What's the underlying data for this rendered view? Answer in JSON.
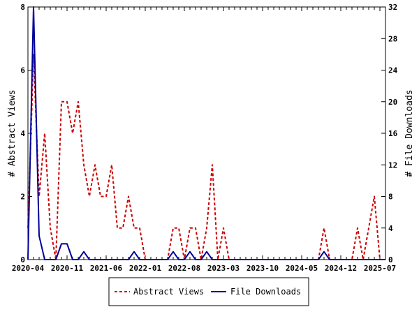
{
  "chart_data": {
    "type": "line",
    "x": [
      "2020-04",
      "2020-05",
      "2020-06",
      "2020-07",
      "2020-08",
      "2020-09",
      "2020-10",
      "2020-11",
      "2020-12",
      "2021-01",
      "2021-02",
      "2021-03",
      "2021-04",
      "2021-05",
      "2021-06",
      "2021-07",
      "2021-08",
      "2021-09",
      "2021-10",
      "2021-11",
      "2021-12",
      "2022-01",
      "2022-02",
      "2022-03",
      "2022-04",
      "2022-05",
      "2022-06",
      "2022-07",
      "2022-08",
      "2022-09",
      "2022-10",
      "2022-11",
      "2022-12",
      "2023-01",
      "2023-02",
      "2023-03",
      "2023-04",
      "2023-05",
      "2023-06",
      "2023-07",
      "2023-08",
      "2023-09",
      "2023-10",
      "2023-11",
      "2023-12",
      "2024-01",
      "2024-02",
      "2024-03",
      "2024-04",
      "2024-05",
      "2024-06",
      "2024-07",
      "2024-08",
      "2024-09",
      "2024-10",
      "2024-11",
      "2024-12",
      "2025-01",
      "2025-02",
      "2025-03",
      "2025-04",
      "2025-05",
      "2025-06",
      "2025-07",
      "2025-08"
    ],
    "x_tick_labels": [
      "2020-04",
      "2020-11",
      "2021-06",
      "2022-01",
      "2022-08",
      "2023-03",
      "2023-10",
      "2024-05",
      "2024-12",
      "2025-07"
    ],
    "series": [
      {
        "name": "Abstract Views",
        "axis": "left",
        "color": "#cc0000",
        "style": "dashed",
        "values": [
          1,
          6.5,
          2,
          4,
          1,
          0,
          5,
          5,
          4,
          5,
          3,
          2,
          3,
          2,
          2,
          3,
          1,
          1,
          2,
          1,
          1,
          0,
          0,
          0,
          0,
          0,
          1,
          1,
          0,
          1,
          1,
          0,
          1,
          3,
          0,
          1,
          0,
          0,
          0,
          0,
          0,
          0,
          0,
          0,
          0,
          0,
          0,
          0,
          0,
          0,
          0,
          0,
          0,
          1,
          0,
          0,
          0,
          0,
          0,
          1,
          0,
          1,
          2,
          0,
          0
        ]
      },
      {
        "name": "File Downloads",
        "axis": "right",
        "color": "#000099",
        "style": "solid",
        "values": [
          0,
          32,
          3,
          0,
          0,
          0,
          2,
          2,
          0,
          0,
          1,
          0,
          0,
          0,
          0,
          0,
          0,
          0,
          0,
          1,
          0,
          0,
          0,
          0,
          0,
          0,
          1,
          0,
          0,
          1,
          0,
          0,
          1,
          0,
          0,
          0,
          0,
          0,
          0,
          0,
          0,
          0,
          0,
          0,
          0,
          0,
          0,
          0,
          0,
          0,
          0,
          0,
          0,
          1,
          0,
          0,
          0,
          0,
          0,
          0,
          0,
          0,
          0,
          0,
          0
        ]
      }
    ],
    "y_left": {
      "label": "# Abstract Views",
      "ticks": [
        0,
        2,
        4,
        6,
        8
      ],
      "ylim": [
        0,
        8
      ]
    },
    "y_right": {
      "label": "# File Downloads",
      "ticks": [
        0,
        4,
        8,
        12,
        16,
        20,
        24,
        28,
        32
      ],
      "ylim": [
        0,
        32
      ]
    },
    "legend_position": "bottom",
    "grid": false
  }
}
